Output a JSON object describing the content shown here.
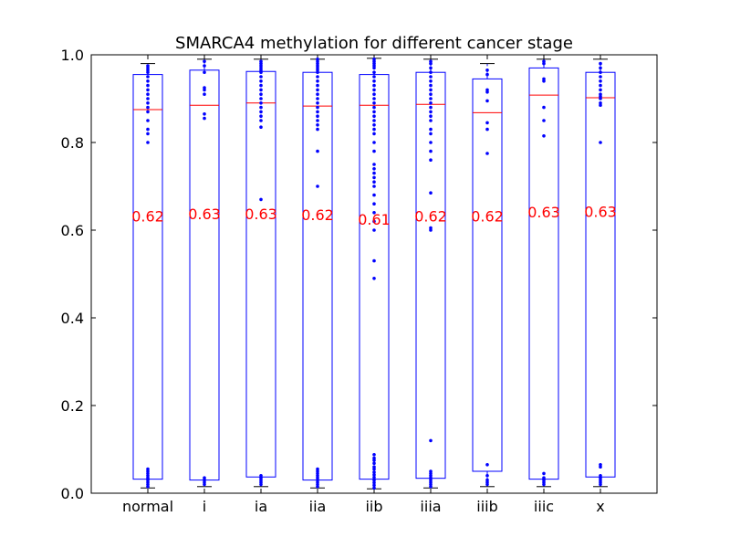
{
  "chart_data": {
    "type": "box",
    "title": "SMARCA4 methylation for different cancer stage",
    "xlabel": "",
    "ylabel": "",
    "ylim": [
      0.0,
      1.0
    ],
    "yticks": [
      "0.0",
      "0.2",
      "0.4",
      "0.6",
      "0.8",
      "1.0"
    ],
    "grid": false,
    "colors": {
      "box": "#0000ff",
      "median": "#ff0000",
      "points": "#0000ff",
      "annotation": "#ff0000",
      "axis": "#000000"
    },
    "categories": [
      "normal",
      "i",
      "ia",
      "iia",
      "iib",
      "iiia",
      "iiib",
      "iiic",
      "x"
    ],
    "boxes": [
      {
        "label": "normal",
        "q1": 0.032,
        "median": 0.875,
        "q3": 0.955,
        "whisker_low": 0.012,
        "whisker_high": 0.98,
        "annotation": "0.62",
        "annotation_y": 0.632,
        "points": [
          0.015,
          0.02,
          0.025,
          0.03,
          0.035,
          0.04,
          0.045,
          0.05,
          0.055,
          0.8,
          0.82,
          0.83,
          0.85,
          0.87,
          0.88,
          0.89,
          0.9,
          0.91,
          0.92,
          0.93,
          0.94,
          0.95,
          0.96,
          0.965,
          0.97,
          0.975
        ]
      },
      {
        "label": "i",
        "q1": 0.03,
        "median": 0.885,
        "q3": 0.965,
        "whisker_low": 0.015,
        "whisker_high": 0.99,
        "annotation": "0.63",
        "annotation_y": 0.638,
        "points": [
          0.02,
          0.025,
          0.03,
          0.035,
          0.855,
          0.865,
          0.91,
          0.92,
          0.925,
          0.96,
          0.975,
          0.985
        ]
      },
      {
        "label": "ia",
        "q1": 0.037,
        "median": 0.89,
        "q3": 0.962,
        "whisker_low": 0.015,
        "whisker_high": 0.99,
        "annotation": "0.63",
        "annotation_y": 0.638,
        "points": [
          0.02,
          0.025,
          0.03,
          0.035,
          0.04,
          0.67,
          0.835,
          0.85,
          0.86,
          0.87,
          0.88,
          0.89,
          0.9,
          0.91,
          0.92,
          0.93,
          0.94,
          0.95,
          0.96,
          0.965,
          0.97,
          0.975,
          0.98,
          0.985
        ]
      },
      {
        "label": "iia",
        "q1": 0.03,
        "median": 0.883,
        "q3": 0.96,
        "whisker_low": 0.012,
        "whisker_high": 0.99,
        "annotation": "0.62",
        "annotation_y": 0.635,
        "points": [
          0.015,
          0.02,
          0.025,
          0.03,
          0.035,
          0.04,
          0.045,
          0.05,
          0.055,
          0.7,
          0.78,
          0.83,
          0.84,
          0.85,
          0.86,
          0.87,
          0.88,
          0.89,
          0.9,
          0.91,
          0.92,
          0.93,
          0.94,
          0.95,
          0.96,
          0.965,
          0.97,
          0.975,
          0.98,
          0.985,
          0.99
        ]
      },
      {
        "label": "iib",
        "q1": 0.032,
        "median": 0.885,
        "q3": 0.955,
        "whisker_low": 0.01,
        "whisker_high": 0.992,
        "annotation": "0.61",
        "annotation_y": 0.625,
        "points": [
          0.012,
          0.018,
          0.024,
          0.03,
          0.036,
          0.042,
          0.048,
          0.055,
          0.06,
          0.068,
          0.075,
          0.08,
          0.088,
          0.49,
          0.53,
          0.6,
          0.62,
          0.64,
          0.66,
          0.68,
          0.7,
          0.71,
          0.72,
          0.73,
          0.74,
          0.75,
          0.78,
          0.8,
          0.82,
          0.83,
          0.84,
          0.85,
          0.86,
          0.87,
          0.88,
          0.89,
          0.9,
          0.91,
          0.92,
          0.93,
          0.94,
          0.95,
          0.96,
          0.97,
          0.975,
          0.98,
          0.985,
          0.99
        ]
      },
      {
        "label": "iiia",
        "q1": 0.034,
        "median": 0.887,
        "q3": 0.96,
        "whisker_low": 0.012,
        "whisker_high": 0.99,
        "annotation": "0.62",
        "annotation_y": 0.632,
        "points": [
          0.015,
          0.02,
          0.025,
          0.03,
          0.035,
          0.04,
          0.045,
          0.05,
          0.12,
          0.6,
          0.605,
          0.685,
          0.76,
          0.78,
          0.8,
          0.82,
          0.83,
          0.85,
          0.86,
          0.87,
          0.88,
          0.89,
          0.9,
          0.91,
          0.92,
          0.93,
          0.94,
          0.95,
          0.96,
          0.97,
          0.98,
          0.985
        ]
      },
      {
        "label": "iiib",
        "q1": 0.05,
        "median": 0.868,
        "q3": 0.945,
        "whisker_low": 0.015,
        "whisker_high": 0.98,
        "annotation": "0.62",
        "annotation_y": 0.632,
        "points": [
          0.02,
          0.025,
          0.03,
          0.04,
          0.065,
          0.775,
          0.83,
          0.845,
          0.895,
          0.915,
          0.92,
          0.955,
          0.965
        ]
      },
      {
        "label": "iiic",
        "q1": 0.032,
        "median": 0.908,
        "q3": 0.97,
        "whisker_low": 0.015,
        "whisker_high": 0.99,
        "annotation": "0.63",
        "annotation_y": 0.642,
        "points": [
          0.02,
          0.025,
          0.03,
          0.035,
          0.045,
          0.815,
          0.85,
          0.88,
          0.94,
          0.945,
          0.98,
          0.985
        ]
      },
      {
        "label": "x",
        "q1": 0.037,
        "median": 0.902,
        "q3": 0.96,
        "whisker_low": 0.015,
        "whisker_high": 0.99,
        "annotation": "0.63",
        "annotation_y": 0.643,
        "points": [
          0.02,
          0.025,
          0.03,
          0.035,
          0.04,
          0.06,
          0.065,
          0.8,
          0.885,
          0.89,
          0.9,
          0.905,
          0.91,
          0.92,
          0.93,
          0.94,
          0.95,
          0.96,
          0.97,
          0.98
        ]
      }
    ]
  }
}
